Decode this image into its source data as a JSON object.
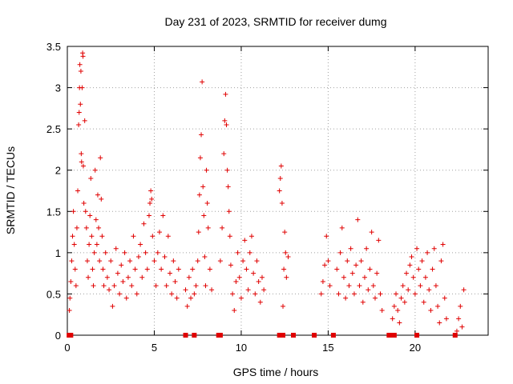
{
  "chart_data": {
    "type": "scatter",
    "title": "Day 231 of 2023, SRMTID for receiver dumg",
    "xlabel": "GPS time / hours",
    "ylabel": "SRMTID / TECUs",
    "xlim": [
      0,
      24.2
    ],
    "ylim": [
      0,
      3.5
    ],
    "xticks": [
      0,
      5,
      10,
      15,
      20
    ],
    "yticks": [
      0,
      0.5,
      1,
      1.5,
      2,
      2.5,
      3,
      3.5
    ],
    "xtick_labels": [
      "0",
      "5",
      "10",
      "15",
      "20"
    ],
    "ytick_labels": [
      "0",
      "0.5",
      "1",
      "1.5",
      "2",
      "2.5",
      "3",
      "3.5"
    ],
    "grid": true,
    "color": "#e00000",
    "marker": "plus",
    "series": [
      {
        "values": [
          [
            0.12,
            0.3
          ],
          [
            0.15,
            0.45
          ],
          [
            0.2,
            0.65
          ],
          [
            0.25,
            0.9
          ],
          [
            0.3,
            1.2
          ],
          [
            0.35,
            1.5
          ],
          [
            0.4,
            1.1
          ],
          [
            0.45,
            0.8
          ],
          [
            0.5,
            0.6
          ],
          [
            0.55,
            1.3
          ],
          [
            0.6,
            1.75
          ],
          [
            0.65,
            2.55
          ],
          [
            0.68,
            2.7
          ],
          [
            0.7,
            3.0
          ],
          [
            0.72,
            3.28
          ],
          [
            0.75,
            2.8
          ],
          [
            0.78,
            3.2
          ],
          [
            0.8,
            2.2
          ],
          [
            0.82,
            2.1
          ],
          [
            0.85,
            3.0
          ],
          [
            0.88,
            3.42
          ],
          [
            0.9,
            3.38
          ],
          [
            0.92,
            2.05
          ],
          [
            0.95,
            1.6
          ],
          [
            1.0,
            2.6
          ],
          [
            1.05,
            1.5
          ],
          [
            1.1,
            1.3
          ],
          [
            1.15,
            0.9
          ],
          [
            1.2,
            0.7
          ],
          [
            1.25,
            1.1
          ],
          [
            1.3,
            1.45
          ],
          [
            1.35,
            1.9
          ],
          [
            1.4,
            1.2
          ],
          [
            1.45,
            0.8
          ],
          [
            1.5,
            0.6
          ],
          [
            1.55,
            1.0
          ],
          [
            1.6,
            2.0
          ],
          [
            1.65,
            1.4
          ],
          [
            1.7,
            1.1
          ],
          [
            1.75,
            1.7
          ],
          [
            1.8,
            1.3
          ],
          [
            1.85,
            0.9
          ],
          [
            1.9,
            2.15
          ],
          [
            1.95,
            1.65
          ],
          [
            2.0,
            1.2
          ],
          [
            2.05,
            0.8
          ],
          [
            2.1,
            0.6
          ],
          [
            2.2,
            1.0
          ],
          [
            2.3,
            0.7
          ],
          [
            2.4,
            0.55
          ],
          [
            2.5,
            0.9
          ],
          [
            2.6,
            0.35
          ],
          [
            2.7,
            0.6
          ],
          [
            2.8,
            1.05
          ],
          [
            2.9,
            0.75
          ],
          [
            3.0,
            0.5
          ],
          [
            3.1,
            0.85
          ],
          [
            3.2,
            0.65
          ],
          [
            3.3,
            1.0
          ],
          [
            3.4,
            0.45
          ],
          [
            3.5,
            0.7
          ],
          [
            3.6,
            0.9
          ],
          [
            3.7,
            0.6
          ],
          [
            3.8,
            1.2
          ],
          [
            3.9,
            0.8
          ],
          [
            4.0,
            0.5
          ],
          [
            4.1,
            0.95
          ],
          [
            4.2,
            1.1
          ],
          [
            4.3,
            0.7
          ],
          [
            4.4,
            1.35
          ],
          [
            4.5,
            1.0
          ],
          [
            4.6,
            0.8
          ],
          [
            4.7,
            1.45
          ],
          [
            4.75,
            1.6
          ],
          [
            4.8,
            1.75
          ],
          [
            4.85,
            1.65
          ],
          [
            4.9,
            1.2
          ],
          [
            5.0,
            0.9
          ],
          [
            5.1,
            0.6
          ],
          [
            5.2,
            1.0
          ],
          [
            5.3,
            1.25
          ],
          [
            5.4,
            0.8
          ],
          [
            5.5,
            1.45
          ],
          [
            5.6,
            0.95
          ],
          [
            5.7,
            0.6
          ],
          [
            5.8,
            1.2
          ],
          [
            5.9,
            0.75
          ],
          [
            6.0,
            0.5
          ],
          [
            6.1,
            0.9
          ],
          [
            6.2,
            0.65
          ],
          [
            6.3,
            0.45
          ],
          [
            6.4,
            0.8
          ],
          [
            6.8,
            0.55
          ],
          [
            6.9,
            0.35
          ],
          [
            7.0,
            0.7
          ],
          [
            7.1,
            0.45
          ],
          [
            7.2,
            0.8
          ],
          [
            7.3,
            0.5
          ],
          [
            7.4,
            0.6
          ],
          [
            7.5,
            0.9
          ],
          [
            7.55,
            1.25
          ],
          [
            7.6,
            1.7
          ],
          [
            7.65,
            2.15
          ],
          [
            7.7,
            2.43
          ],
          [
            7.75,
            3.07
          ],
          [
            7.8,
            1.8
          ],
          [
            7.85,
            1.45
          ],
          [
            7.9,
            0.95
          ],
          [
            7.95,
            0.6
          ],
          [
            8.0,
            2.0
          ],
          [
            8.05,
            1.6
          ],
          [
            8.1,
            1.3
          ],
          [
            8.2,
            0.8
          ],
          [
            8.3,
            0.55
          ],
          [
            8.8,
            0.9
          ],
          [
            8.9,
            1.3
          ],
          [
            9.0,
            2.2
          ],
          [
            9.05,
            2.6
          ],
          [
            9.1,
            2.92
          ],
          [
            9.15,
            2.55
          ],
          [
            9.2,
            2.0
          ],
          [
            9.25,
            1.8
          ],
          [
            9.3,
            1.5
          ],
          [
            9.35,
            1.2
          ],
          [
            9.4,
            0.85
          ],
          [
            9.5,
            0.5
          ],
          [
            9.6,
            0.3
          ],
          [
            9.7,
            0.65
          ],
          [
            9.8,
            1.0
          ],
          [
            9.9,
            0.7
          ],
          [
            10.0,
            0.45
          ],
          [
            10.1,
            0.9
          ],
          [
            10.2,
            1.15
          ],
          [
            10.3,
            0.8
          ],
          [
            10.4,
            0.55
          ],
          [
            10.5,
            1.0
          ],
          [
            10.6,
            1.2
          ],
          [
            10.7,
            0.75
          ],
          [
            10.8,
            0.5
          ],
          [
            10.9,
            0.9
          ],
          [
            11.0,
            0.65
          ],
          [
            11.1,
            0.4
          ],
          [
            11.2,
            0.7
          ],
          [
            11.3,
            0.55
          ],
          [
            12.2,
            1.75
          ],
          [
            12.25,
            1.9
          ],
          [
            12.3,
            2.05
          ],
          [
            12.35,
            1.6
          ],
          [
            12.4,
            0.35
          ],
          [
            12.45,
            0.8
          ],
          [
            12.5,
            1.25
          ],
          [
            12.55,
            1.0
          ],
          [
            12.6,
            0.7
          ],
          [
            12.7,
            0.95
          ],
          [
            14.6,
            0.5
          ],
          [
            14.7,
            0.65
          ],
          [
            14.8,
            0.85
          ],
          [
            14.9,
            1.2
          ],
          [
            15.0,
            0.9
          ],
          [
            15.1,
            0.6
          ],
          [
            15.5,
            0.8
          ],
          [
            15.6,
            0.5
          ],
          [
            15.7,
            1.0
          ],
          [
            15.8,
            1.3
          ],
          [
            15.9,
            0.7
          ],
          [
            16.0,
            0.45
          ],
          [
            16.1,
            0.9
          ],
          [
            16.2,
            0.6
          ],
          [
            16.3,
            1.05
          ],
          [
            16.4,
            0.75
          ],
          [
            16.5,
            0.5
          ],
          [
            16.6,
            0.85
          ],
          [
            16.7,
            1.4
          ],
          [
            16.8,
            0.6
          ],
          [
            16.9,
            0.9
          ],
          [
            17.0,
            0.4
          ],
          [
            17.1,
            0.7
          ],
          [
            17.2,
            1.05
          ],
          [
            17.3,
            0.55
          ],
          [
            17.4,
            0.8
          ],
          [
            17.5,
            1.25
          ],
          [
            17.6,
            0.6
          ],
          [
            17.7,
            0.45
          ],
          [
            17.8,
            0.75
          ],
          [
            17.9,
            1.15
          ],
          [
            18.0,
            0.5
          ],
          [
            18.1,
            0.3
          ],
          [
            18.7,
            0.2
          ],
          [
            18.8,
            0.35
          ],
          [
            18.9,
            0.5
          ],
          [
            19.0,
            0.3
          ],
          [
            19.1,
            0.15
          ],
          [
            19.2,
            0.45
          ],
          [
            19.3,
            0.6
          ],
          [
            19.4,
            0.4
          ],
          [
            19.5,
            0.75
          ],
          [
            19.6,
            0.55
          ],
          [
            19.7,
            0.85
          ],
          [
            19.8,
            0.95
          ],
          [
            19.9,
            0.7
          ],
          [
            20.0,
            0.5
          ],
          [
            20.1,
            1.05
          ],
          [
            20.2,
            0.8
          ],
          [
            20.3,
            0.6
          ],
          [
            20.4,
            0.9
          ],
          [
            20.5,
            0.4
          ],
          [
            20.6,
            0.7
          ],
          [
            20.7,
            1.0
          ],
          [
            20.8,
            0.55
          ],
          [
            20.9,
            0.3
          ],
          [
            21.0,
            0.8
          ],
          [
            21.1,
            1.05
          ],
          [
            21.2,
            0.6
          ],
          [
            21.3,
            0.35
          ],
          [
            21.4,
            0.15
          ],
          [
            21.5,
            0.9
          ],
          [
            21.6,
            1.1
          ],
          [
            21.7,
            0.45
          ],
          [
            21.8,
            0.2
          ],
          [
            22.4,
            0.05
          ],
          [
            22.5,
            0.2
          ],
          [
            22.6,
            0.35
          ],
          [
            22.7,
            0.1
          ],
          [
            22.8,
            0.55
          ]
        ]
      }
    ],
    "zero_markers_x": [
      0.1,
      0.2,
      6.8,
      7.3,
      8.7,
      8.8,
      12.2,
      12.4,
      13.0,
      14.2,
      15.3,
      18.5,
      18.7,
      18.8,
      20.1,
      22.3
    ]
  }
}
